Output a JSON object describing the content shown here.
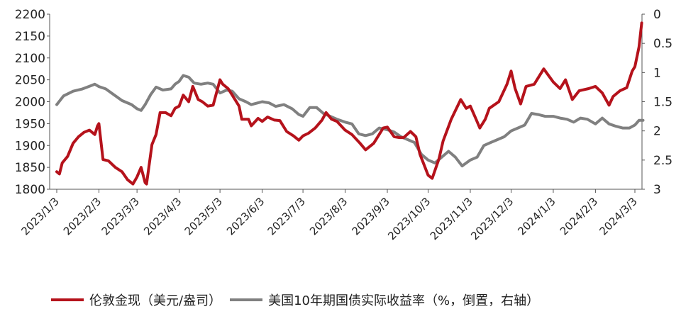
{
  "chart_data": {
    "type": "line",
    "title": "",
    "x_tick_labels": [
      "2023/1/3",
      "2023/2/3",
      "2023/3/3",
      "2023/4/3",
      "2023/5/3",
      "2023/6/3",
      "2023/7/3",
      "2023/8/3",
      "2023/9/3",
      "2023/10/3",
      "2023/11/3",
      "2023/12/3",
      "2024/1/3",
      "2024/2/3",
      "2024/3/3"
    ],
    "y_left": {
      "ticks": [
        "2200",
        "2150",
        "2100",
        "2050",
        "2000",
        "1950",
        "1900",
        "1850",
        "1800"
      ],
      "ylim": [
        1800,
        2200
      ]
    },
    "y_right": {
      "ticks": [
        "0",
        "0.5",
        "1",
        "1.5",
        "2",
        "2.5",
        "3"
      ],
      "ylim": [
        3,
        0
      ],
      "inverted": true
    },
    "series": [
      {
        "name": "伦敦金现（美元/盎司）",
        "axis": "left",
        "color": "#b5121b",
        "points": [
          [
            "2023/1/3",
            1840
          ],
          [
            "2023/1/5",
            1835
          ],
          [
            "2023/1/7",
            1860
          ],
          [
            "2023/1/11",
            1875
          ],
          [
            "2023/1/15",
            1905
          ],
          [
            "2023/1/19",
            1920
          ],
          [
            "2023/1/23",
            1930
          ],
          [
            "2023/1/27",
            1935
          ],
          [
            "2023/1/31",
            1925
          ],
          [
            "2023/2/2",
            1945
          ],
          [
            "2023/2/3",
            1950
          ],
          [
            "2023/2/6",
            1868
          ],
          [
            "2023/2/10",
            1865
          ],
          [
            "2023/2/15",
            1850
          ],
          [
            "2023/2/20",
            1840
          ],
          [
            "2023/2/24",
            1822
          ],
          [
            "2023/2/28",
            1812
          ],
          [
            "2023/3/3",
            1828
          ],
          [
            "2023/3/6",
            1850
          ],
          [
            "2023/3/9",
            1815
          ],
          [
            "2023/3/10",
            1812
          ],
          [
            "2023/3/14",
            1902
          ],
          [
            "2023/3/17",
            1925
          ],
          [
            "2023/3/20",
            1975
          ],
          [
            "2023/3/24",
            1975
          ],
          [
            "2023/3/28",
            1968
          ],
          [
            "2023/3/31",
            1985
          ],
          [
            "2023/4/3",
            1990
          ],
          [
            "2023/4/6",
            2015
          ],
          [
            "2023/4/10",
            2000
          ],
          [
            "2023/4/13",
            2035
          ],
          [
            "2023/4/17",
            2005
          ],
          [
            "2023/4/20",
            2000
          ],
          [
            "2023/4/24",
            1990
          ],
          [
            "2023/4/28",
            1992
          ],
          [
            "2023/5/3",
            2050
          ],
          [
            "2023/5/5",
            2040
          ],
          [
            "2023/5/9",
            2030
          ],
          [
            "2023/5/12",
            2015
          ],
          [
            "2023/5/17",
            1990
          ],
          [
            "2023/5/19",
            1960
          ],
          [
            "2023/5/24",
            1960
          ],
          [
            "2023/5/26",
            1945
          ],
          [
            "2023/5/31",
            1962
          ],
          [
            "2023/6/3",
            1955
          ],
          [
            "2023/6/7",
            1965
          ],
          [
            "2023/6/12",
            1958
          ],
          [
            "2023/6/16",
            1957
          ],
          [
            "2023/6/21",
            1932
          ],
          [
            "2023/6/26",
            1922
          ],
          [
            "2023/6/30",
            1912
          ],
          [
            "2023/7/3",
            1922
          ],
          [
            "2023/7/7",
            1928
          ],
          [
            "2023/7/12",
            1940
          ],
          [
            "2023/7/17",
            1958
          ],
          [
            "2023/7/20",
            1975
          ],
          [
            "2023/7/24",
            1960
          ],
          [
            "2023/7/28",
            1955
          ],
          [
            "2023/8/3",
            1935
          ],
          [
            "2023/8/8",
            1925
          ],
          [
            "2023/8/14",
            1905
          ],
          [
            "2023/8/18",
            1890
          ],
          [
            "2023/8/24",
            1905
          ],
          [
            "2023/8/31",
            1940
          ],
          [
            "2023/9/3",
            1942
          ],
          [
            "2023/9/8",
            1920
          ],
          [
            "2023/9/12",
            1918
          ],
          [
            "2023/9/15",
            1918
          ],
          [
            "2023/9/20",
            1932
          ],
          [
            "2023/9/24",
            1920
          ],
          [
            "2023/9/27",
            1880
          ],
          [
            "2023/10/1",
            1848
          ],
          [
            "2023/10/3",
            1832
          ],
          [
            "2023/10/6",
            1825
          ],
          [
            "2023/10/11",
            1870
          ],
          [
            "2023/10/14",
            1910
          ],
          [
            "2023/10/20",
            1960
          ],
          [
            "2023/10/27",
            2005
          ],
          [
            "2023/10/31",
            1985
          ],
          [
            "2023/11/3",
            1990
          ],
          [
            "2023/11/7",
            1962
          ],
          [
            "2023/11/10",
            1940
          ],
          [
            "2023/11/14",
            1960
          ],
          [
            "2023/11/17",
            1985
          ],
          [
            "2023/11/24",
            2000
          ],
          [
            "2023/11/30",
            2040
          ],
          [
            "2023/12/3",
            2070
          ],
          [
            "2023/12/6",
            2030
          ],
          [
            "2023/12/10",
            1995
          ],
          [
            "2023/12/14",
            2035
          ],
          [
            "2023/12/20",
            2040
          ],
          [
            "2023/12/27",
            2075
          ],
          [
            "2024/1/3",
            2045
          ],
          [
            "2024/1/8",
            2030
          ],
          [
            "2024/1/12",
            2050
          ],
          [
            "2024/1/17",
            2005
          ],
          [
            "2024/1/22",
            2025
          ],
          [
            "2024/1/29",
            2030
          ],
          [
            "2024/2/3",
            2035
          ],
          [
            "2024/2/8",
            2020
          ],
          [
            "2024/2/13",
            1992
          ],
          [
            "2024/2/16",
            2012
          ],
          [
            "2024/2/21",
            2025
          ],
          [
            "2024/2/26",
            2032
          ],
          [
            "2024/3/1",
            2070
          ],
          [
            "2024/3/3",
            2080
          ],
          [
            "2024/3/6",
            2125
          ],
          [
            "2024/3/8",
            2180
          ]
        ]
      },
      {
        "name": "美国10年期国债实际收益率（%，倒置，右轴）",
        "axis": "right",
        "color": "#808080",
        "points": [
          [
            "2023/1/3",
            1.55
          ],
          [
            "2023/1/8",
            1.4
          ],
          [
            "2023/1/15",
            1.32
          ],
          [
            "2023/1/22",
            1.28
          ],
          [
            "2023/1/31",
            1.2
          ],
          [
            "2023/2/3",
            1.24
          ],
          [
            "2023/2/8",
            1.28
          ],
          [
            "2023/2/14",
            1.38
          ],
          [
            "2023/2/20",
            1.48
          ],
          [
            "2023/2/27",
            1.55
          ],
          [
            "2023/3/3",
            1.62
          ],
          [
            "2023/3/6",
            1.65
          ],
          [
            "2023/3/9",
            1.55
          ],
          [
            "2023/3/13",
            1.38
          ],
          [
            "2023/3/17",
            1.25
          ],
          [
            "2023/3/22",
            1.3
          ],
          [
            "2023/3/28",
            1.28
          ],
          [
            "2023/3/31",
            1.2
          ],
          [
            "2023/4/3",
            1.15
          ],
          [
            "2023/4/6",
            1.05
          ],
          [
            "2023/4/10",
            1.08
          ],
          [
            "2023/4/14",
            1.18
          ],
          [
            "2023/4/19",
            1.2
          ],
          [
            "2023/4/24",
            1.18
          ],
          [
            "2023/4/28",
            1.2
          ],
          [
            "2023/5/3",
            1.35
          ],
          [
            "2023/5/8",
            1.3
          ],
          [
            "2023/5/12",
            1.32
          ],
          [
            "2023/5/17",
            1.45
          ],
          [
            "2023/5/22",
            1.5
          ],
          [
            "2023/5/26",
            1.55
          ],
          [
            "2023/5/31",
            1.52
          ],
          [
            "2023/6/3",
            1.5
          ],
          [
            "2023/6/8",
            1.52
          ],
          [
            "2023/6/13",
            1.58
          ],
          [
            "2023/6/19",
            1.55
          ],
          [
            "2023/6/25",
            1.62
          ],
          [
            "2023/6/30",
            1.72
          ],
          [
            "2023/7/3",
            1.75
          ],
          [
            "2023/7/8",
            1.6
          ],
          [
            "2023/7/13",
            1.6
          ],
          [
            "2023/7/18",
            1.7
          ],
          [
            "2023/7/23",
            1.75
          ],
          [
            "2023/7/28",
            1.8
          ],
          [
            "2023/8/3",
            1.85
          ],
          [
            "2023/8/8",
            1.88
          ],
          [
            "2023/8/13",
            2.05
          ],
          [
            "2023/8/18",
            2.08
          ],
          [
            "2023/8/23",
            2.05
          ],
          [
            "2023/8/28",
            1.95
          ],
          [
            "2023/9/3",
            1.98
          ],
          [
            "2023/9/8",
            2.02
          ],
          [
            "2023/9/13",
            2.1
          ],
          [
            "2023/9/18",
            2.15
          ],
          [
            "2023/9/23",
            2.2
          ],
          [
            "2023/9/28",
            2.4
          ],
          [
            "2023/10/3",
            2.5
          ],
          [
            "2023/10/8",
            2.55
          ],
          [
            "2023/10/13",
            2.45
          ],
          [
            "2023/10/18",
            2.35
          ],
          [
            "2023/10/23",
            2.45
          ],
          [
            "2023/10/28",
            2.6
          ],
          [
            "2023/11/3",
            2.5
          ],
          [
            "2023/11/8",
            2.45
          ],
          [
            "2023/11/13",
            2.25
          ],
          [
            "2023/11/18",
            2.2
          ],
          [
            "2023/11/23",
            2.15
          ],
          [
            "2023/11/28",
            2.1
          ],
          [
            "2023/12/3",
            2.0
          ],
          [
            "2023/12/8",
            1.95
          ],
          [
            "2023/12/13",
            1.9
          ],
          [
            "2023/12/18",
            1.7
          ],
          [
            "2023/12/23",
            1.72
          ],
          [
            "2023/12/28",
            1.75
          ],
          [
            "2024/1/3",
            1.75
          ],
          [
            "2024/1/8",
            1.78
          ],
          [
            "2024/1/13",
            1.8
          ],
          [
            "2024/1/18",
            1.85
          ],
          [
            "2024/1/23",
            1.78
          ],
          [
            "2024/1/28",
            1.8
          ],
          [
            "2024/2/3",
            1.88
          ],
          [
            "2024/2/8",
            1.78
          ],
          [
            "2024/2/13",
            1.88
          ],
          [
            "2024/2/18",
            1.92
          ],
          [
            "2024/2/23",
            1.95
          ],
          [
            "2024/2/28",
            1.95
          ],
          [
            "2024/3/3",
            1.9
          ],
          [
            "2024/3/6",
            1.82
          ],
          [
            "2024/3/9",
            1.82
          ]
        ]
      }
    ],
    "legend": {
      "position": "bottom"
    }
  }
}
